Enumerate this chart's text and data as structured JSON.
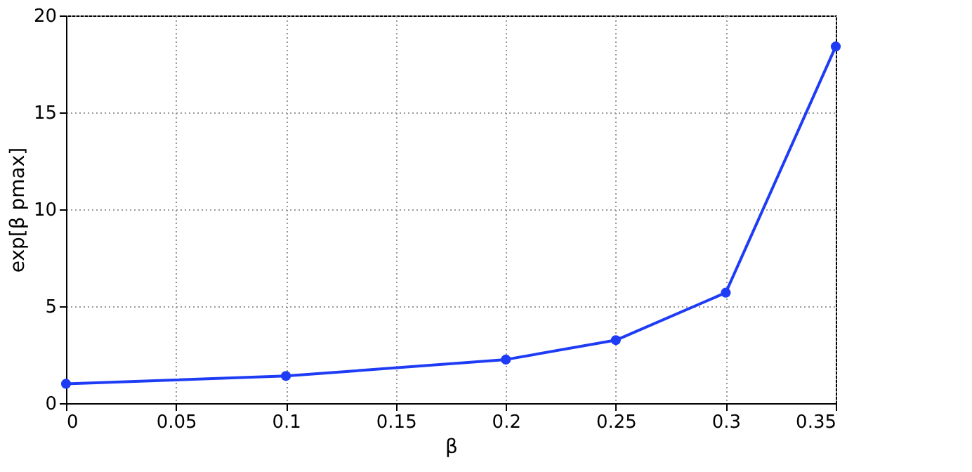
{
  "chart_data": {
    "type": "line",
    "xlabel": "β",
    "ylabel": "exp[β pmax]",
    "x": [
      0,
      0.1,
      0.2,
      0.25,
      0.3,
      0.35
    ],
    "series": [
      {
        "color": "#1f3cf5",
        "values": [
          1.0,
          1.4,
          2.25,
          3.25,
          5.7,
          18.4
        ]
      }
    ],
    "xlim": [
      0,
      0.35
    ],
    "xticks": [
      0,
      0.05,
      0.1,
      0.15,
      0.2,
      0.25,
      0.3,
      0.35
    ],
    "ylim": [
      0,
      20
    ],
    "yticks": [
      0,
      5,
      10,
      15,
      20
    ],
    "grid": true,
    "marker": "circle",
    "line_style": "solid"
  }
}
